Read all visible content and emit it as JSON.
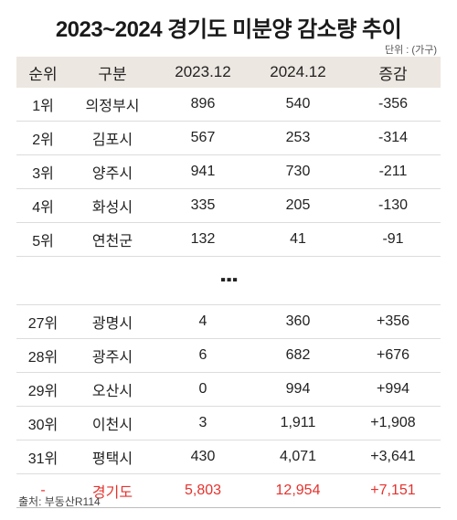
{
  "title": "2023~2024 경기도 미분양 감소량 추이",
  "unit": "단위 : (가구)",
  "source": "출처: 부동산R114",
  "ellipsis": "⋮",
  "chart_data": {
    "type": "table",
    "columns": [
      "순위",
      "구분",
      "2023.12",
      "2024.12",
      "증감"
    ],
    "rows_top": [
      [
        "1위",
        "의정부시",
        "896",
        "540",
        "-356"
      ],
      [
        "2위",
        "김포시",
        "567",
        "253",
        "-314"
      ],
      [
        "3위",
        "양주시",
        "941",
        "730",
        "-211"
      ],
      [
        "4위",
        "화성시",
        "335",
        "205",
        "-130"
      ],
      [
        "5위",
        "연천군",
        "132",
        "41",
        "-91"
      ]
    ],
    "rows_bottom": [
      [
        "27위",
        "광명시",
        "4",
        "360",
        "+356"
      ],
      [
        "28위",
        "광주시",
        "6",
        "682",
        "+676"
      ],
      [
        "29위",
        "오산시",
        "0",
        "994",
        "+994"
      ],
      [
        "30위",
        "이천시",
        "3",
        "1,911",
        "+1,908"
      ],
      [
        "31위",
        "평택시",
        "430",
        "4,071",
        "+3,641"
      ]
    ],
    "total": [
      "-",
      "경기도",
      "5,803",
      "12,954",
      "+7,151"
    ]
  }
}
